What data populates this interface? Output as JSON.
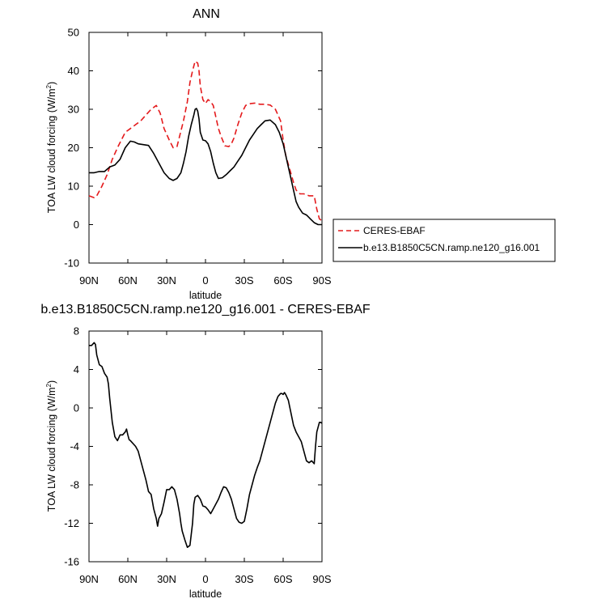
{
  "chart_data": [
    {
      "type": "line",
      "title": "ANN",
      "xlabel": "latitude",
      "ylabel": "TOA LW cloud forcing (W/m",
      "ylabel_sup": "2",
      "ylabel_end": ")",
      "x_tick_values": [
        90,
        60,
        30,
        0,
        -30,
        -60,
        -90
      ],
      "x_tick_labels": [
        "90N",
        "60N",
        "30N",
        "0",
        "30S",
        "60S",
        "90S"
      ],
      "xlim": [
        90,
        -90
      ],
      "ylim": [
        -10,
        50
      ],
      "y_ticks": [
        -10,
        0,
        10,
        20,
        30,
        40,
        50
      ],
      "legend_position": "right, outside",
      "series": [
        {
          "name": "CERES-EBAF",
          "color": "#e41a1c",
          "dash": "dashed",
          "x": [
            90,
            86,
            84,
            80,
            76,
            72,
            68,
            65,
            62,
            58,
            54,
            50,
            46,
            42,
            38,
            35,
            32,
            28,
            25,
            22,
            20,
            17,
            14,
            12,
            10,
            8,
            6,
            5,
            4,
            2,
            0,
            -2,
            -4,
            -6,
            -8,
            -10,
            -12,
            -15,
            -18,
            -20,
            -22,
            -25,
            -28,
            -31,
            -35,
            -38,
            -42,
            -46,
            -50,
            -54,
            -58,
            -60,
            -62,
            -65,
            -68,
            -70,
            -73,
            -76,
            -80,
            -84,
            -86,
            -88,
            -90
          ],
          "values": [
            7.5,
            7,
            7.5,
            10,
            13,
            17,
            20,
            22,
            24,
            25,
            26,
            27,
            28.5,
            30,
            31,
            29,
            25,
            22,
            20,
            20.3,
            23,
            27,
            32,
            37,
            40,
            42.5,
            42,
            40,
            36,
            32.5,
            31.5,
            32.5,
            32,
            31,
            28,
            25,
            23,
            20.5,
            20.3,
            21,
            22.5,
            26,
            29,
            31,
            31.5,
            31.6,
            31.3,
            31.3,
            31.1,
            30,
            27,
            22,
            18,
            14.5,
            11,
            9,
            8,
            8,
            7.5,
            7.5,
            4,
            1.5,
            1
          ]
        },
        {
          "name": "b.e13.B1850C5CN.ramp.ne120_g16.001",
          "color": "#000000",
          "dash": "solid",
          "x": [
            90,
            86,
            82,
            78,
            74,
            70,
            66,
            62,
            58,
            55,
            52,
            48,
            44,
            40,
            36,
            32,
            28,
            25,
            22,
            19,
            17,
            15,
            13,
            11,
            9,
            8,
            7,
            6,
            5,
            4,
            2,
            0,
            -2,
            -4,
            -6,
            -8,
            -10,
            -13,
            -16,
            -19,
            -22,
            -25,
            -28,
            -31,
            -34,
            -37,
            -40,
            -43,
            -46,
            -50,
            -54,
            -57,
            -60,
            -62,
            -64,
            -66,
            -68,
            -70,
            -72,
            -75,
            -78,
            -81,
            -84,
            -87,
            -90
          ],
          "values": [
            13.5,
            13.5,
            13.8,
            13.8,
            15,
            15.5,
            17,
            20,
            21.7,
            21.5,
            21,
            20.8,
            20.6,
            18.5,
            16,
            13.5,
            12,
            11.5,
            12,
            13.5,
            16,
            19,
            23,
            26,
            28.5,
            30,
            30.2,
            29.5,
            27.5,
            24,
            22,
            21.8,
            21,
            19,
            16,
            13.5,
            12,
            12.2,
            13,
            14,
            15,
            16.5,
            18,
            20,
            22,
            23.5,
            25,
            26,
            27,
            27.2,
            26,
            24,
            21,
            18,
            15,
            12,
            9,
            6,
            4.5,
            3,
            2.5,
            1.5,
            0.5,
            0,
            0
          ]
        }
      ]
    },
    {
      "type": "line",
      "title": "b.e13.B1850C5CN.ramp.ne120_g16.001 - CERES-EBAF",
      "xlabel": "latitude",
      "ylabel": "TOA LW cloud forcing (W/m",
      "ylabel_sup": "2",
      "ylabel_end": ")",
      "x_tick_values": [
        90,
        60,
        30,
        0,
        -30,
        -60,
        -90
      ],
      "x_tick_labels": [
        "90N",
        "60N",
        "30N",
        "0",
        "30S",
        "60S",
        "90S"
      ],
      "xlim": [
        90,
        -90
      ],
      "ylim": [
        -16,
        8
      ],
      "y_ticks": [
        -16,
        -12,
        -8,
        -4,
        0,
        4,
        8
      ],
      "series": [
        {
          "color": "#000000",
          "dash": "solid",
          "x": [
            90,
            88,
            86,
            85,
            84,
            82,
            80,
            78,
            76,
            75,
            74,
            72,
            70,
            68,
            66,
            64,
            62,
            61,
            60,
            59,
            58,
            56,
            54,
            52,
            50,
            48,
            46,
            44,
            42,
            40,
            38,
            37,
            36,
            34,
            32,
            30,
            28,
            26,
            24,
            22,
            20,
            19,
            18,
            16,
            14,
            12,
            10,
            9,
            8,
            6,
            4,
            2,
            0,
            -2,
            -4,
            -6,
            -8,
            -10,
            -12,
            -14,
            -16,
            -18,
            -20,
            -22,
            -24,
            -26,
            -28,
            -30,
            -32,
            -34,
            -36,
            -38,
            -40,
            -42,
            -44,
            -46,
            -48,
            -50,
            -52,
            -54,
            -56,
            -58,
            -59,
            -60,
            -61,
            -62,
            -64,
            -66,
            -68,
            -70,
            -72,
            -74,
            -76,
            -78,
            -80,
            -82,
            -84,
            -85,
            -86,
            -88,
            -89,
            -90
          ],
          "values": [
            6.5,
            6.5,
            6.8,
            6.6,
            5.5,
            4.5,
            4.3,
            3.6,
            3.2,
            2.5,
            1,
            -1.5,
            -3,
            -3.4,
            -2.8,
            -2.8,
            -2.5,
            -2.2,
            -2.8,
            -3.3,
            -3.4,
            -3.7,
            -4,
            -4.5,
            -5.5,
            -6.5,
            -7.5,
            -8.7,
            -9,
            -10.5,
            -11.5,
            -12.3,
            -11.5,
            -11,
            -9.8,
            -8.5,
            -8.5,
            -8.2,
            -8.5,
            -9.5,
            -11,
            -12,
            -12.8,
            -13.7,
            -14.5,
            -14.3,
            -12,
            -10,
            -9.3,
            -9.1,
            -9.5,
            -10.2,
            -10.3,
            -10.6,
            -11,
            -10.5,
            -10,
            -9.5,
            -8.8,
            -8.2,
            -8.3,
            -8.8,
            -9.5,
            -10.5,
            -11.5,
            -11.9,
            -12,
            -11.8,
            -10.5,
            -9,
            -8,
            -7,
            -6.2,
            -5.5,
            -4.5,
            -3.5,
            -2.5,
            -1.5,
            -0.5,
            0.5,
            1.2,
            1.5,
            1.5,
            1.4,
            1.6,
            1.4,
            0.8,
            -0.5,
            -1.8,
            -2.5,
            -3,
            -3.5,
            -4.5,
            -5.5,
            -5.7,
            -5.5,
            -5.8,
            -4,
            -2.5,
            -1.5,
            -1.5,
            -1.6
          ]
        }
      ]
    }
  ]
}
